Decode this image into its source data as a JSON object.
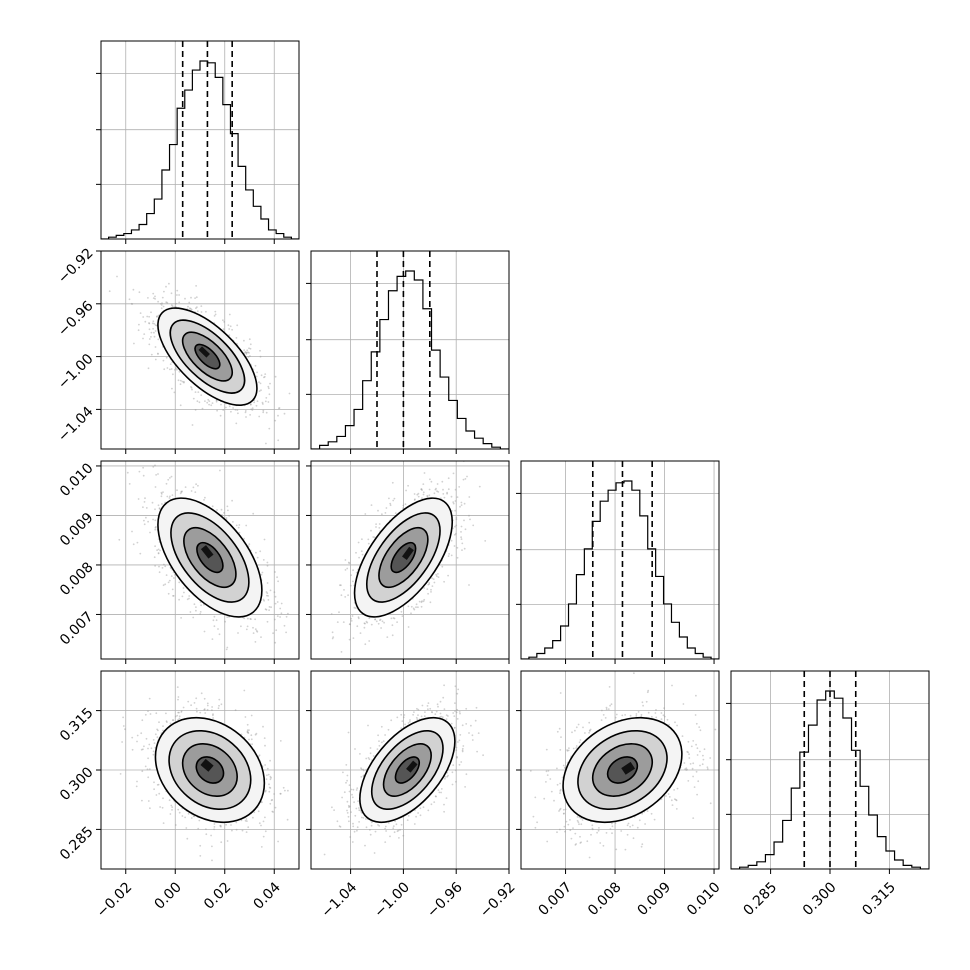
{
  "chart_data": {
    "type": "corner",
    "parameters": 4,
    "grid": true,
    "quantile_lines": "dashed",
    "diagonal": [
      {
        "range": [
          -0.03,
          0.05
        ],
        "quantiles": [
          0.003,
          0.013,
          0.023
        ],
        "hist": [
          0,
          1,
          2,
          3,
          5,
          8,
          14,
          22,
          38,
          52,
          72,
          82,
          93,
          98,
          97,
          89,
          74,
          58,
          40,
          27,
          18,
          11,
          5,
          3,
          1,
          0
        ]
      },
      {
        "range": [
          -1.07,
          -0.92
        ],
        "quantiles": [
          -1.02,
          -1.0,
          -0.98
        ],
        "hist": [
          0,
          2,
          4,
          7,
          13,
          22,
          38,
          54,
          72,
          88,
          96,
          99,
          94,
          78,
          55,
          40,
          27,
          17,
          10,
          6,
          3,
          1,
          0
        ]
      },
      {
        "range": [
          0.0061,
          0.0101
        ],
        "quantiles": [
          0.00755,
          0.00815,
          0.00875
        ],
        "hist": [
          0,
          1,
          3,
          6,
          10,
          18,
          30,
          46,
          60,
          75,
          86,
          92,
          96,
          97,
          92,
          78,
          60,
          45,
          30,
          20,
          12,
          6,
          3,
          1,
          0
        ]
      },
      {
        "range": [
          0.275,
          0.325
        ],
        "quantiles": [
          0.2935,
          0.3,
          0.3065
        ],
        "hist": [
          0,
          1,
          2,
          4,
          8,
          15,
          27,
          45,
          65,
          80,
          94,
          99,
          95,
          84,
          66,
          46,
          30,
          18,
          10,
          5,
          2,
          1,
          0
        ]
      }
    ],
    "ticks": [
      {
        "values": [
          -0.02,
          0.0,
          0.02,
          0.04
        ],
        "labels": [
          "−0.02",
          "0.00",
          "0.02",
          "0.04"
        ]
      },
      {
        "values": [
          -1.04,
          -1.0,
          -0.96,
          -0.92
        ],
        "labels": [
          "−1.04",
          "−1.00",
          "−0.96",
          "−0.92"
        ]
      },
      {
        "values": [
          0.007,
          0.008,
          0.009,
          0.01
        ],
        "labels": [
          "0.007",
          "0.008",
          "0.009",
          "0.010"
        ]
      },
      {
        "values": [
          0.285,
          0.3,
          0.315
        ],
        "labels": [
          "0.285",
          "0.300",
          "0.315"
        ]
      }
    ],
    "pairs": [
      {
        "row": 1,
        "col": 0,
        "x_center": 0.013,
        "y_center": -1.0,
        "sx": 0.01,
        "sy": 0.0184,
        "rho": -0.65
      },
      {
        "row": 2,
        "col": 0,
        "x_center": 0.014,
        "y_center": 0.00815,
        "sx": 0.0105,
        "sy": 0.0006,
        "rho": -0.55
      },
      {
        "row": 2,
        "col": 1,
        "x_center": -1.0,
        "y_center": 0.00815,
        "sx": 0.0185,
        "sy": 0.0006,
        "rho": 0.6
      },
      {
        "row": 3,
        "col": 0,
        "x_center": 0.014,
        "y_center": 0.3,
        "sx": 0.011,
        "sy": 0.0066,
        "rho": -0.25
      },
      {
        "row": 3,
        "col": 1,
        "x_center": -0.997,
        "y_center": 0.3,
        "sx": 0.018,
        "sy": 0.0066,
        "rho": 0.55
      },
      {
        "row": 3,
        "col": 2,
        "x_center": 0.00815,
        "y_center": 0.3,
        "sx": 0.0006,
        "sy": 0.0066,
        "rho": 0.3
      }
    ],
    "contour_levels": [
      0.5,
      1.0,
      1.5,
      2.0
    ],
    "colors": {
      "line": "#000000",
      "grid": "#b0b0b0",
      "points": "#9a9a9a"
    }
  }
}
